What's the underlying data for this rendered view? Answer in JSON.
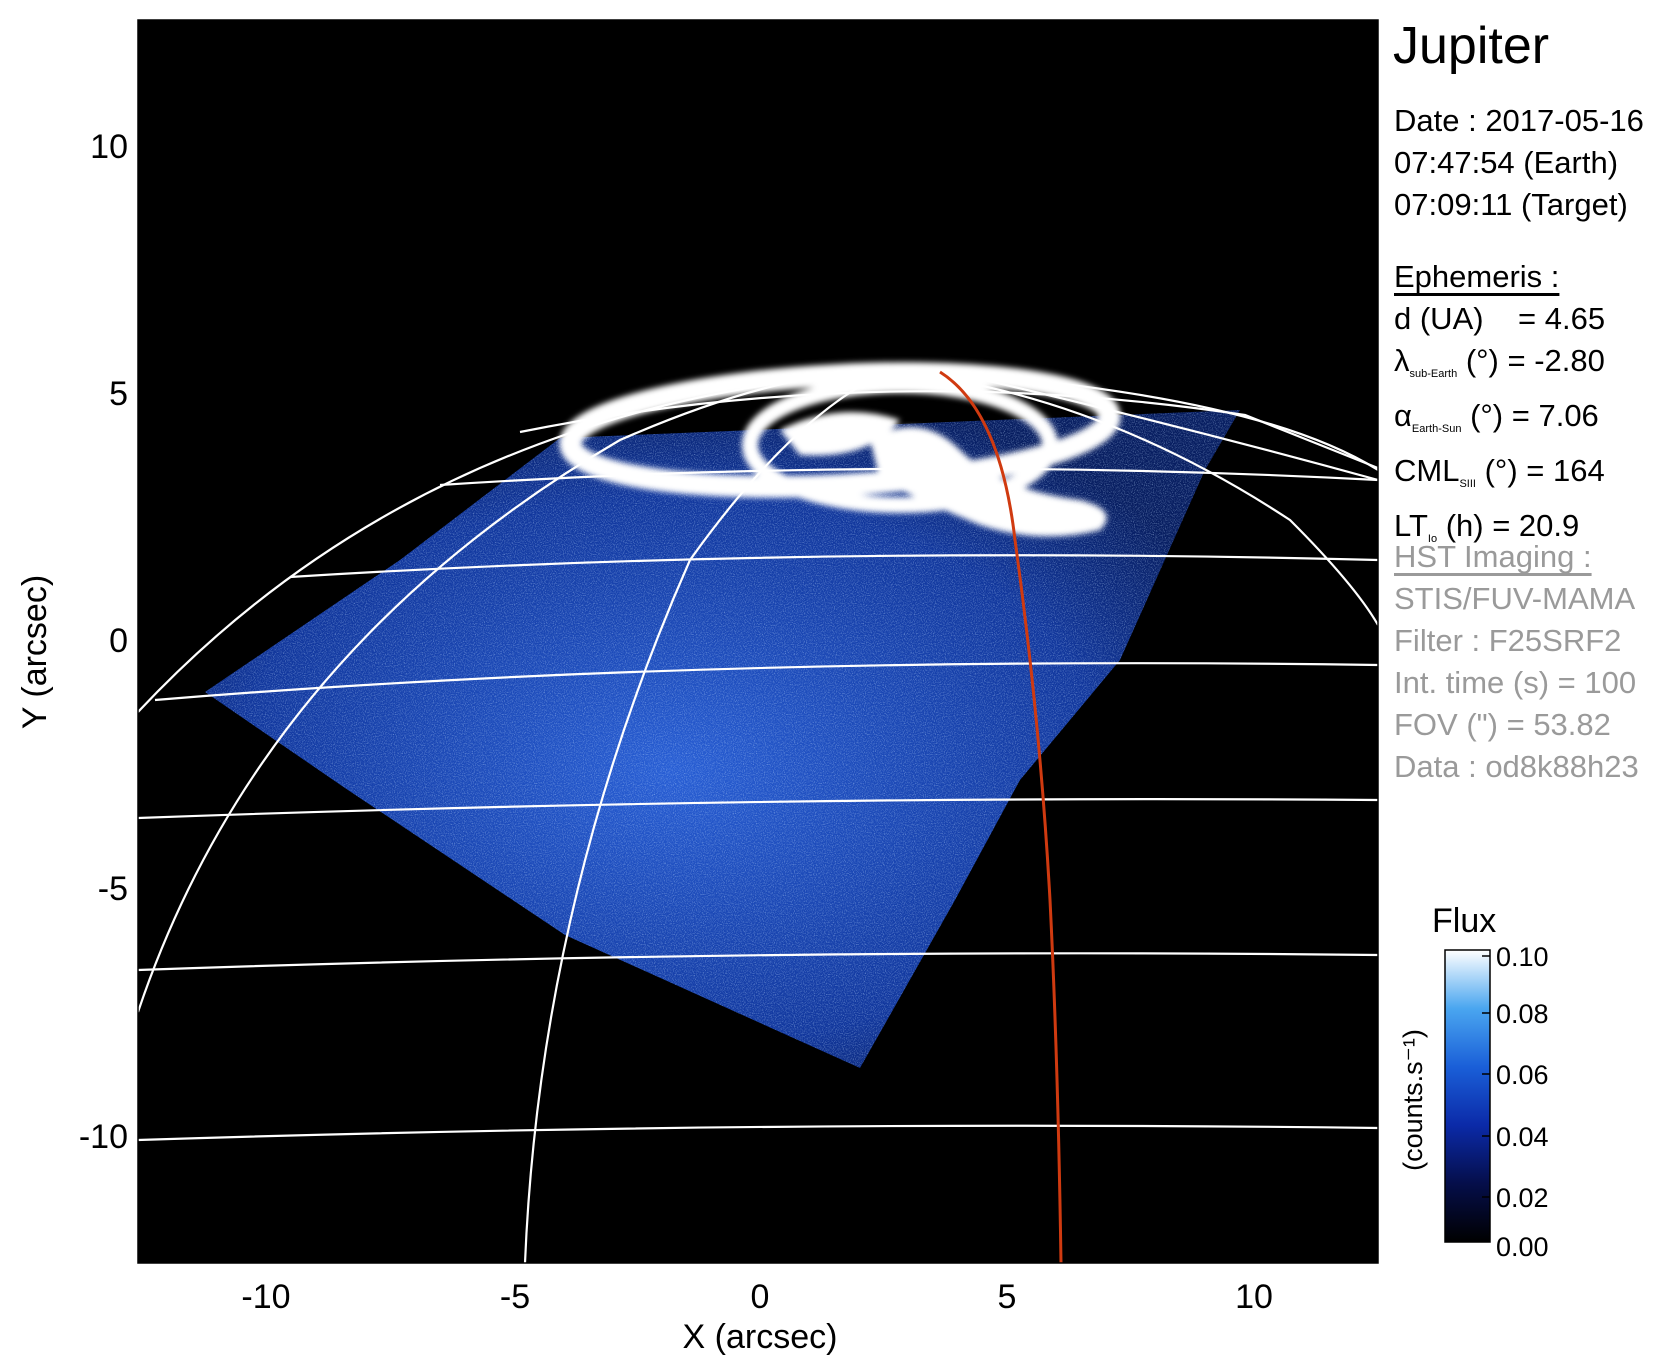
{
  "image": {
    "x_axis": {
      "label": "X (arcsec)",
      "ticks": [
        "-10",
        "-5",
        "0",
        "5",
        "10"
      ]
    },
    "y_axis": {
      "label": "Y (arcsec)",
      "ticks": [
        "10",
        "5",
        "0",
        "-5",
        "-10"
      ]
    },
    "planet": "Jupiter",
    "date": {
      "line1": "Date : 2017-05-16",
      "line2": "07:47:54 (Earth)",
      "line3": "07:09:11 (Target)"
    },
    "ephemeris": {
      "header": "Ephemeris :",
      "d": {
        "label": "d (UA)",
        "value": "= 4.65"
      },
      "lambda": {
        "symbol": "λ",
        "sub": "sub-Earth",
        "unit": "(°)",
        "value": "= -2.80"
      },
      "alpha": {
        "symbol": "α",
        "sub": "Earth-Sun",
        "unit": "(°)",
        "value": "= 7.06"
      },
      "cml": {
        "symbol": "CML",
        "sub": "SIII",
        "unit": "(°)",
        "value": "= 164"
      },
      "lt": {
        "symbol": "LT",
        "sub": "Io",
        "unit": "(h)",
        "value": "= 20.9"
      }
    },
    "hst": {
      "header": "HST Imaging :",
      "instrument": "STIS/FUV-MAMA",
      "filter": "Filter : F25SRF2",
      "int_time": "Int. time (s) = 100",
      "fov": "FOV (\") = 53.82",
      "data": "Data : od8k88h23"
    },
    "colorbar": {
      "title": "Flux",
      "unit": "(counts.s⁻¹)",
      "ticks": [
        "0.10",
        "0.08",
        "0.06",
        "0.04",
        "0.02",
        "0.00"
      ]
    },
    "colors": {
      "background": "#000000",
      "grid": "#ffffff",
      "reference_meridian": "#d03a10",
      "aurora": "#ffffff",
      "disk_emission": "#1a55d8",
      "grey_text": "#9a9a9a"
    }
  }
}
